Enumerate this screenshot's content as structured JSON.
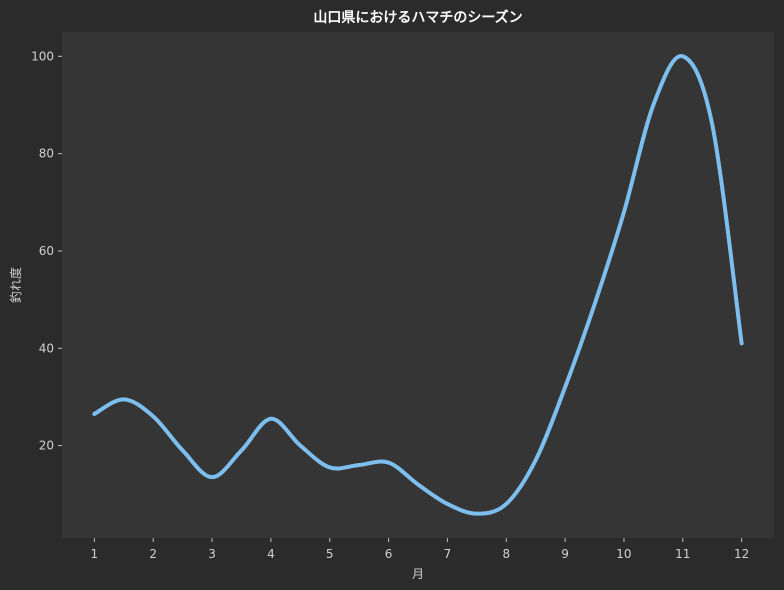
{
  "chart_data": {
    "type": "line",
    "title": "山口県におけるハマチのシーズン",
    "xlabel": "月",
    "ylabel": "釣れ度",
    "x": [
      1,
      2,
      3,
      4,
      5,
      6,
      7,
      8,
      9,
      10,
      11,
      12
    ],
    "x_ticks": [
      "1",
      "2",
      "3",
      "4",
      "5",
      "6",
      "7",
      "8",
      "9",
      "10",
      "11",
      "12"
    ],
    "y_ticks": [
      "20",
      "40",
      "60",
      "80",
      "100"
    ],
    "xlim": [
      0.45,
      12.55
    ],
    "ylim": [
      1,
      105
    ],
    "grid": false,
    "series": [
      {
        "points": [
          [
            1,
            26.5
          ],
          [
            1.5,
            29.5
          ],
          [
            2,
            26
          ],
          [
            2.5,
            19
          ],
          [
            3,
            13.5
          ],
          [
            3.5,
            19
          ],
          [
            4,
            25.5
          ],
          [
            4.5,
            20
          ],
          [
            5,
            15.5
          ],
          [
            5.5,
            16
          ],
          [
            6,
            16.5
          ],
          [
            6.5,
            12
          ],
          [
            7,
            8
          ],
          [
            7.5,
            6
          ],
          [
            8,
            8
          ],
          [
            8.5,
            17
          ],
          [
            9,
            32
          ],
          [
            9.5,
            49
          ],
          [
            10,
            68
          ],
          [
            10.5,
            90
          ],
          [
            11,
            100
          ],
          [
            11.5,
            86
          ],
          [
            12,
            41
          ]
        ],
        "color": "#7cbfef"
      }
    ]
  },
  "colors": {
    "figure_bg": "#2b2b2b",
    "plot_bg": "#353535",
    "line": "#7cbfef"
  }
}
